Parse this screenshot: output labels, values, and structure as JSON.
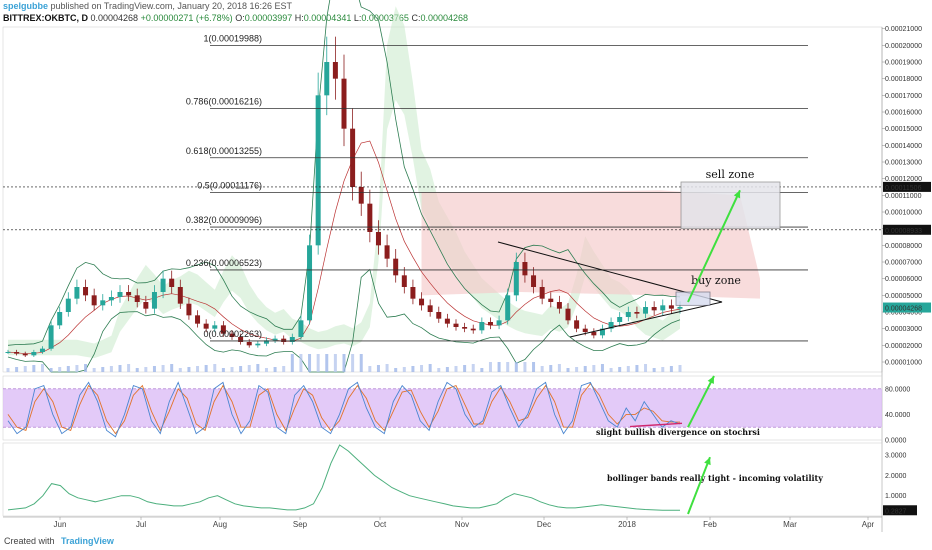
{
  "header": {
    "author": "spelgubbe",
    "published": " published on TradingView.com, January 20, 2018 16:26 EST",
    "symbol": "BITTREX:OKBTC, D",
    "last": "0.00004268",
    "change": "+0.00000271 (+6.78%)",
    "o_label": "O:",
    "o": "0.00003997",
    "h_label": "H:",
    "h": "0.00004341",
    "l_label": "L:",
    "l": "0.00003765",
    "c_label": "C:",
    "c": "0.00004268"
  },
  "footer": {
    "created": "Created with",
    "brand": "TradingView"
  },
  "colors": {
    "up": "#26a69a",
    "down": "#8b1d1d",
    "ichimoku_bull": "#c8eacb",
    "ichimoku_bear": "#f5c9c9",
    "rsi_band": "#d9b8f5",
    "stoch_k": "#4a86d0",
    "stoch_d": "#e2732b",
    "bbw": "#4caf7d",
    "arrow": "#3fe03f",
    "fib": "#333333"
  },
  "chart_data": [
    {
      "type": "line",
      "x": [
        "Jun",
        "Jul",
        "Aug",
        "Sep",
        "Oct",
        "Nov",
        "Dec",
        "2018",
        "Feb",
        "Mar",
        "Apr"
      ],
      "price_axis_ticks": [
        "0.00021000",
        "0.00020000",
        "0.00019000",
        "0.00018000",
        "0.00017000",
        "0.00016000",
        "0.00015000",
        "0.00014000",
        "0.00013000",
        "0.00012000",
        "0.00011000",
        "0.00010000",
        "0.00009000",
        "0.00008000",
        "0.00007000",
        "0.00006000",
        "0.00005000",
        "0.00004000",
        "0.00003000",
        "0.00002000",
        "0.00001000"
      ],
      "ylim": [
        4e-06,
        0.000211
      ],
      "price_markers": [
        {
          "value": "0.00011506",
          "y": 0.00011506
        },
        {
          "value": "0.00008933",
          "y": 8.933e-05
        },
        {
          "value": "0.00004268",
          "y": 4.268e-05
        }
      ],
      "fib_levels": [
        {
          "label": "1(0.00019988)",
          "value": 0.00019988
        },
        {
          "label": "0.786(0.00016216)",
          "value": 0.00016216
        },
        {
          "label": "0.618(0.00013255)",
          "value": 0.00013255
        },
        {
          "label": "0.5(0.00011176)",
          "value": 0.00011176
        },
        {
          "label": "0.382(0.00009096)",
          "value": 9.096e-05
        },
        {
          "label": "0.236(0.00006523)",
          "value": 6.523e-05
        },
        {
          "label": "0(0.00002263)",
          "value": 2.263e-05
        }
      ],
      "close_series": [
        1.6e-05,
        1.5e-05,
        1.4e-05,
        1.6e-05,
        1.8e-05,
        3.2e-05,
        4e-05,
        4.8e-05,
        5.5e-05,
        5e-05,
        4.4e-05,
        4.7e-05,
        4.9e-05,
        5.2e-05,
        5e-05,
        4.6e-05,
        4.2e-05,
        5.2e-05,
        6e-05,
        5.5e-05,
        4.5e-05,
        3.8e-05,
        3.3e-05,
        3e-05,
        3.2e-05,
        2.7e-05,
        2.5e-05,
        2.2e-05,
        2e-05,
        2.1e-05,
        2.3e-05,
        2.4e-05,
        2.2e-05,
        2.5e-05,
        3.5e-05,
        8e-05,
        0.00017,
        0.00019,
        0.00018,
        0.00015,
        0.000115,
        0.000105,
        8.8e-05,
        8e-05,
        7.2e-05,
        6.2e-05,
        5.5e-05,
        4.8e-05,
        4.4e-05,
        4e-05,
        3.6e-05,
        3.3e-05,
        3.1e-05,
        3e-05,
        2.9e-05,
        3.4e-05,
        3.2e-05,
        3.5e-05,
        5e-05,
        7e-05,
        6.2e-05,
        5.5e-05,
        4.8e-05,
        4.6e-05,
        4.2e-05,
        3.5e-05,
        3e-05,
        2.8e-05,
        2.6e-05,
        3e-05,
        3.4e-05,
        3.7e-05,
        4e-05,
        3.9e-05,
        4.3e-05,
        4.1e-05,
        4.4e-05,
        4.2e-05,
        4.3e-05
      ],
      "annotations": {
        "sell_zone": {
          "label": "sell zone",
          "y_top": 0.000118,
          "y_bottom": 9e-05
        },
        "buy_zone": {
          "label": "buy zone",
          "y_top": 5.2e-05,
          "y_bottom": 4.4e-05
        }
      }
    },
    {
      "type": "line",
      "name_hidden": "",
      "axis_ticks": [
        "80.0000",
        "40.0000",
        "0.0000"
      ],
      "ylim": [
        0,
        100
      ],
      "band": [
        20,
        80
      ],
      "annotation": "slight bullish divergence on stochrsi",
      "k": [
        30,
        10,
        20,
        80,
        85,
        40,
        10,
        20,
        70,
        90,
        60,
        15,
        5,
        40,
        85,
        80,
        30,
        10,
        60,
        90,
        50,
        10,
        20,
        80,
        90,
        40,
        10,
        30,
        85,
        75,
        20,
        10,
        70,
        85,
        60,
        20,
        10,
        40,
        80,
        90,
        50,
        20,
        10,
        60,
        85,
        70,
        30,
        15,
        60,
        90,
        80,
        40,
        20,
        30,
        75,
        85,
        50,
        20,
        40,
        80,
        90,
        40,
        10,
        30,
        85,
        90,
        60,
        30,
        20,
        50,
        30,
        60,
        40,
        20,
        30,
        25
      ],
      "d": [
        40,
        20,
        15,
        60,
        80,
        60,
        20,
        15,
        55,
        85,
        70,
        30,
        10,
        30,
        70,
        85,
        45,
        15,
        45,
        80,
        65,
        25,
        15,
        60,
        85,
        60,
        20,
        20,
        70,
        80,
        40,
        15,
        50,
        80,
        70,
        35,
        15,
        30,
        65,
        85,
        65,
        30,
        15,
        45,
        75,
        78,
        45,
        20,
        45,
        80,
        85,
        55,
        25,
        25,
        60,
        82,
        60,
        30,
        35,
        65,
        85,
        60,
        20,
        20,
        70,
        88,
        70,
        40,
        25,
        40,
        40,
        50,
        45,
        30,
        28,
        28
      ]
    },
    {
      "type": "line",
      "axis_ticks": [
        "3.0000",
        "2.0000",
        "1.0000"
      ],
      "ylim": [
        0,
        3.6
      ],
      "last_value": "0.2827",
      "annotation": "bollinger bands really tight - incoming volatility",
      "values": [
        0.3,
        0.35,
        0.4,
        0.6,
        1.0,
        1.6,
        1.5,
        1.1,
        0.9,
        0.8,
        0.7,
        0.8,
        0.9,
        1.0,
        1.0,
        0.9,
        0.7,
        0.6,
        0.55,
        0.5,
        0.5,
        0.6,
        0.7,
        0.9,
        1.0,
        0.8,
        0.6,
        0.5,
        0.45,
        0.4,
        0.4,
        0.35,
        0.3,
        0.3,
        0.4,
        0.6,
        1.4,
        2.6,
        3.5,
        3.2,
        2.8,
        2.4,
        2.0,
        1.7,
        1.4,
        1.2,
        1.0,
        0.9,
        0.8,
        0.7,
        0.6,
        0.5,
        0.45,
        0.4,
        0.4,
        0.5,
        0.6,
        0.9,
        1.1,
        1.0,
        0.9,
        0.7,
        0.55,
        0.45,
        0.4,
        0.4,
        0.45,
        0.5,
        0.55,
        0.5,
        0.45,
        0.4,
        0.35,
        0.32,
        0.3,
        0.28,
        0.28,
        0.2827
      ]
    }
  ]
}
